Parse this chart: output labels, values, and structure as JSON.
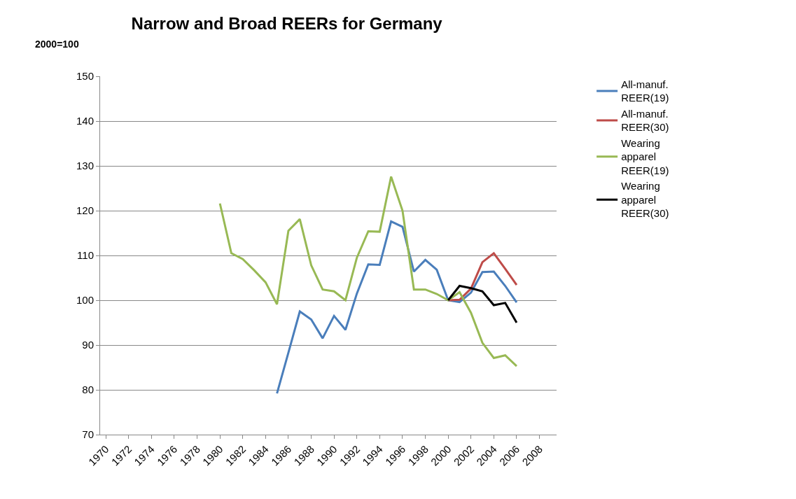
{
  "chart_data": {
    "type": "line",
    "title": "Narrow and Broad REERs for Germany",
    "ylabel": "2000=100",
    "categories": [
      "1970",
      null,
      "1972",
      null,
      "1974",
      null,
      "1976",
      null,
      "1978",
      null,
      "1980",
      null,
      "1982",
      null,
      "1984",
      null,
      "1986",
      null,
      "1988",
      null,
      "1990",
      null,
      "1992",
      null,
      "1994",
      null,
      "1996",
      null,
      "1998",
      null,
      "2000",
      null,
      "2002",
      null,
      "2004",
      null,
      "2006",
      null,
      "2008",
      null
    ],
    "series": [
      {
        "name": "All-manuf. REER(19)",
        "color": "#4a7ebb",
        "values": [
          null,
          null,
          null,
          null,
          null,
          null,
          null,
          null,
          null,
          null,
          null,
          null,
          null,
          null,
          null,
          79.2,
          88.3,
          97.5,
          95.7,
          91.5,
          96.5,
          93.4,
          101.5,
          108,
          107.9,
          117.6,
          116.4,
          106.4,
          109,
          106.8,
          100,
          99.6,
          101.7,
          106.3,
          106.4,
          103.2,
          99.5,
          null,
          null,
          null
        ]
      },
      {
        "name": "All-manuf. REER(30)",
        "color": "#be4b48",
        "values": [
          null,
          null,
          null,
          null,
          null,
          null,
          null,
          null,
          null,
          null,
          null,
          null,
          null,
          null,
          null,
          null,
          null,
          null,
          null,
          null,
          null,
          null,
          null,
          null,
          null,
          null,
          null,
          null,
          null,
          null,
          100,
          100.1,
          102.6,
          108.5,
          110.5,
          107,
          103.4,
          null,
          null,
          null
        ]
      },
      {
        "name": "Wearing apparel REER(19)",
        "color": "#98b954",
        "values": [
          null,
          null,
          null,
          null,
          null,
          null,
          null,
          null,
          null,
          null,
          121.6,
          110.5,
          109.2,
          106.7,
          104,
          99.1,
          115.5,
          118.1,
          107.8,
          102.4,
          102,
          100,
          109.5,
          115.4,
          115.3,
          127.6,
          120,
          102.4,
          102.4,
          101.4,
          100,
          101.8,
          97.2,
          90.5,
          87.1,
          87.7,
          85.3,
          null,
          null,
          null
        ]
      },
      {
        "name": "Wearing apparel REER(30)",
        "color": "#000000",
        "values": [
          null,
          null,
          null,
          null,
          null,
          null,
          null,
          null,
          null,
          null,
          null,
          null,
          null,
          null,
          null,
          null,
          null,
          null,
          null,
          null,
          null,
          null,
          null,
          null,
          null,
          null,
          null,
          null,
          null,
          null,
          100,
          103.2,
          102.7,
          102,
          98.9,
          99.4,
          95,
          null,
          null,
          null
        ]
      }
    ],
    "ylim": [
      70,
      150
    ],
    "yticks": [
      70,
      80,
      90,
      100,
      110,
      120,
      130,
      140,
      150
    ],
    "grid": "y",
    "legend": "right",
    "marker": "none",
    "line_style": "solid"
  }
}
